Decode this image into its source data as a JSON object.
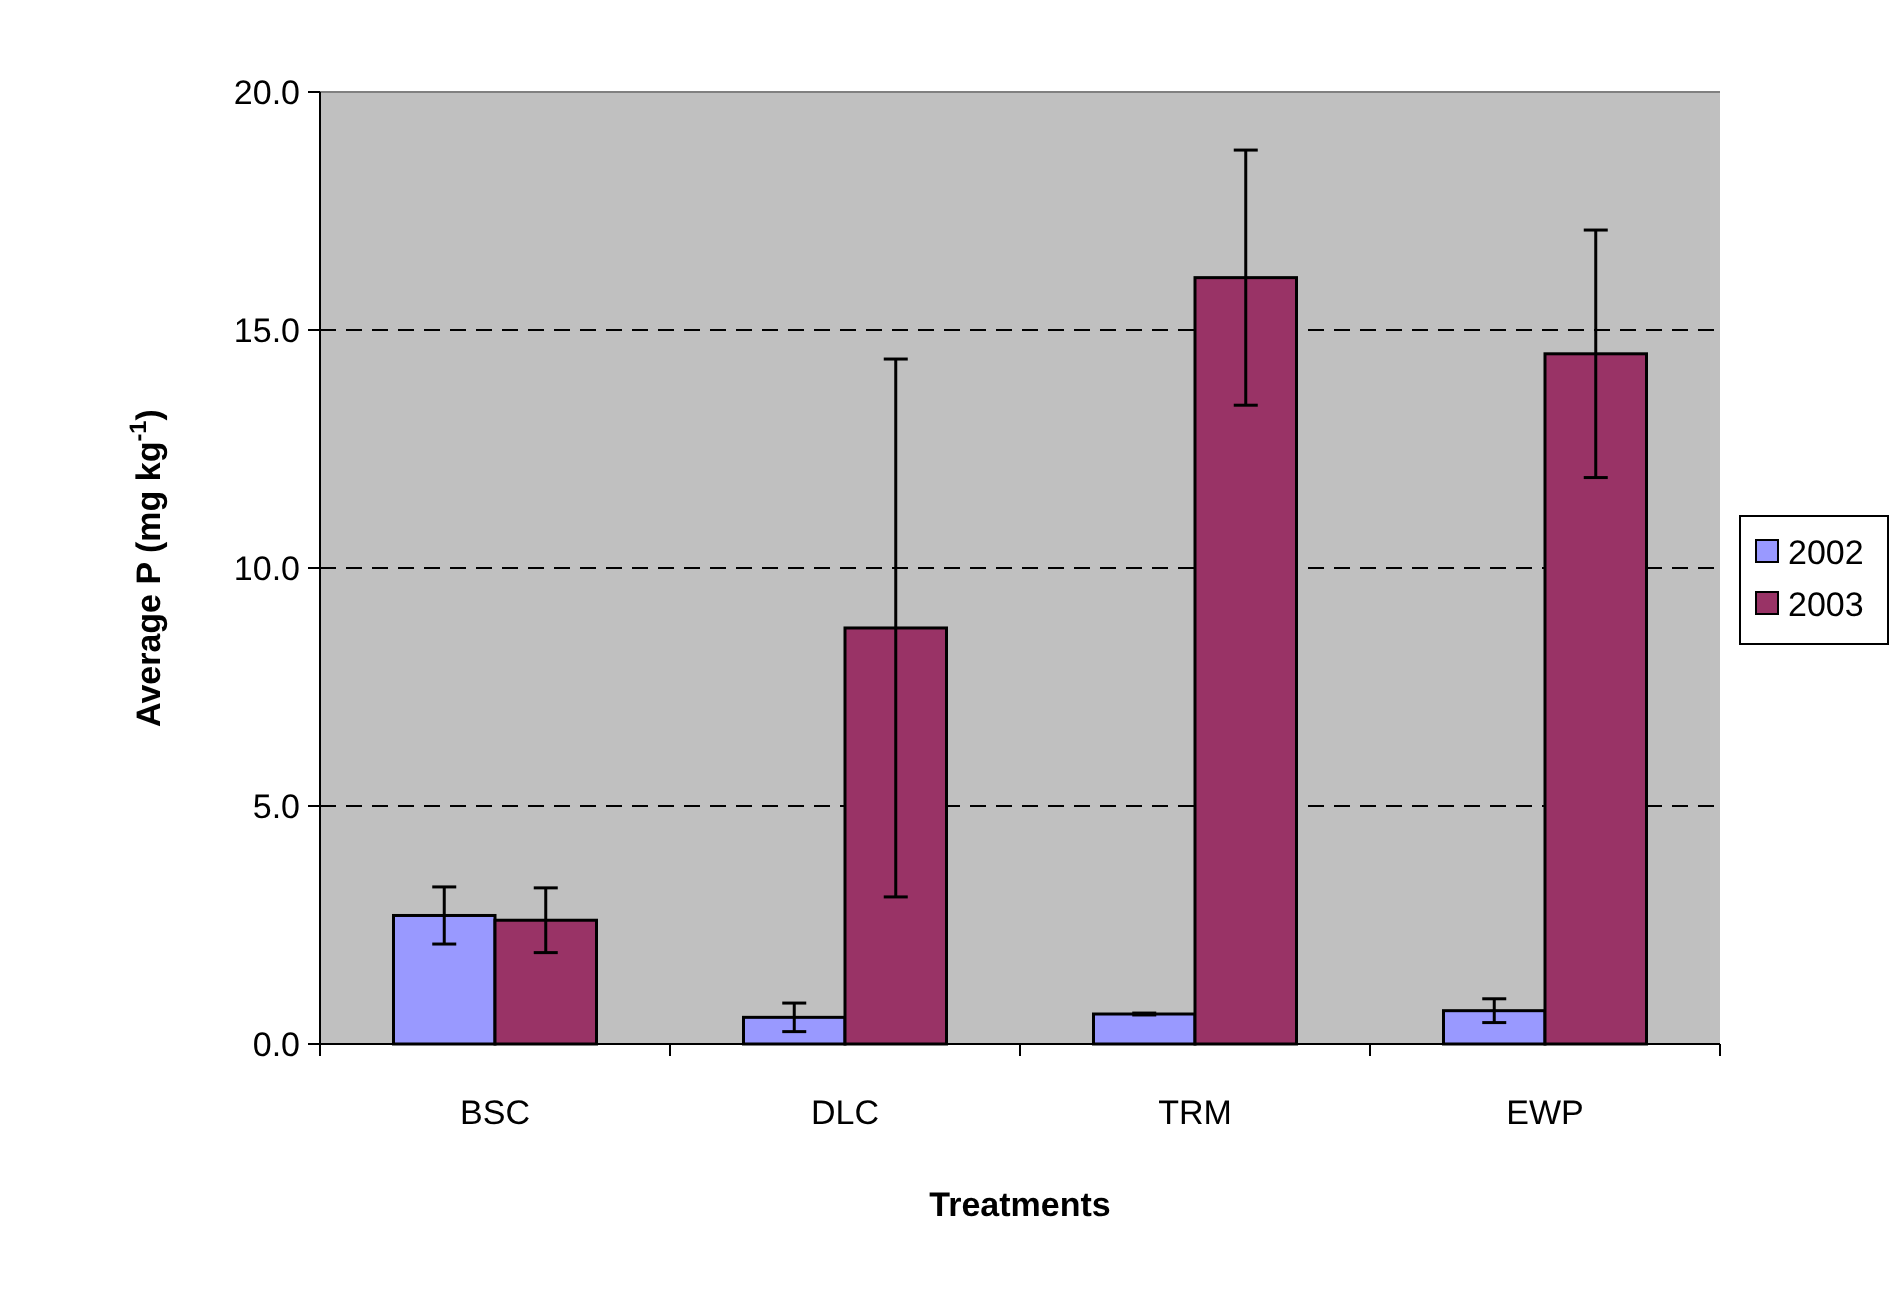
{
  "chart_data": {
    "type": "bar",
    "xlabel": "Treatments",
    "ylabel": "Average P (mg kg$^{-1}$)",
    "categories": [
      "BSC",
      "DLC",
      "TRM",
      "EWP"
    ],
    "series": [
      {
        "name": "2002",
        "color": "#9999ff",
        "values": [
          2.7,
          0.56,
          0.63,
          0.7
        ],
        "errors": [
          0.6,
          0.3,
          0.02,
          0.25
        ]
      },
      {
        "name": "2003",
        "color": "#993366",
        "values": [
          2.6,
          8.74,
          16.1,
          14.5
        ],
        "errors": [
          0.68,
          5.65,
          2.68,
          2.6
        ]
      }
    ],
    "ylim": [
      0,
      20
    ],
    "yticks": [
      {
        "value": 0,
        "label": "0.0"
      },
      {
        "value": 5,
        "label": "5.0"
      },
      {
        "value": 10,
        "label": "10.0"
      },
      {
        "value": 15,
        "label": "15.0"
      },
      {
        "value": 20,
        "label": "20.0"
      }
    ],
    "grid": "y",
    "legend": "right"
  }
}
